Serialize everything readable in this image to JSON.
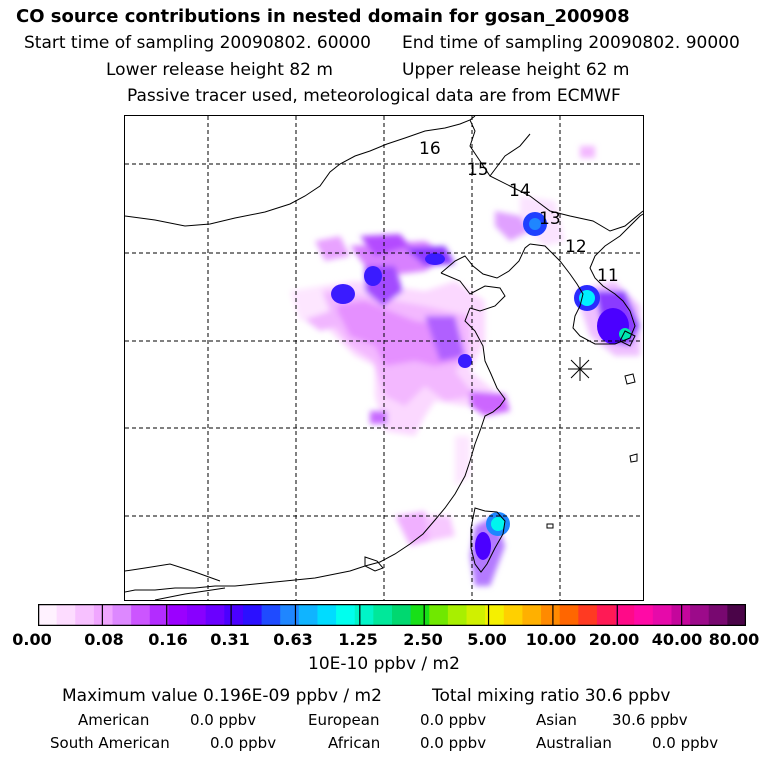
{
  "header": {
    "title": "CO  source contributions in nested domain for gosan_200908",
    "start_sampling": "Start time of sampling 20090802. 60000",
    "end_sampling": "End time of sampling 20090802. 90000",
    "lower_release": "Lower release height   82 m",
    "upper_release": "Upper release height   62 m",
    "tracer_note": "Passive tracer used, meteorological data are from ECMWF"
  },
  "map": {
    "trajectory_labels": [
      "16",
      "15",
      "14",
      "13",
      "12",
      "11"
    ],
    "receptor_marker": "gosan-receptor-star-icon"
  },
  "scale": {
    "colors": [
      "#fff2ff",
      "#fddcff",
      "#f7c1ff",
      "#f0a6ff",
      "#dd88ff",
      "#cc55ff",
      "#b32cff",
      "#9b00ff",
      "#8800ff",
      "#6a00ff",
      "#4b00ff",
      "#2b10ff",
      "#1f4bff",
      "#1f86ff",
      "#10b4ff",
      "#00dcff",
      "#00ffee",
      "#00f5c8",
      "#00e89a",
      "#00d870",
      "#18e018",
      "#70e800",
      "#a8ef00",
      "#d0f000",
      "#f5f000",
      "#ffd000",
      "#ffb000",
      "#ff8a00",
      "#ff6600",
      "#ff3a22",
      "#ff1a55",
      "#ff0a88",
      "#ff0aa6",
      "#e60aaa",
      "#c4069c",
      "#9c0a8a",
      "#780870",
      "#4a0448"
    ],
    "ticks": [
      "0.00",
      "0.08",
      "0.16",
      "0.31",
      "0.63",
      "1.25",
      "2.50",
      "5.00",
      "10.00",
      "20.00",
      "40.00",
      "80.00"
    ],
    "unit": "10E-10 ppbv / m2"
  },
  "summary": {
    "maximum_value": "Maximum value  0.196E-09 ppbv / m2",
    "total_mixing": "Total mixing ratio       30.6 ppbv",
    "regions": [
      {
        "name": "American",
        "value": "0.0 ppbv"
      },
      {
        "name": "European",
        "value": "0.0 ppbv"
      },
      {
        "name": "Asian",
        "value": "30.6 ppbv"
      },
      {
        "name": "South American",
        "value": "0.0 ppbv"
      },
      {
        "name": "African",
        "value": "0.0 ppbv"
      },
      {
        "name": "Australian",
        "value": "0.0 ppbv"
      }
    ]
  }
}
